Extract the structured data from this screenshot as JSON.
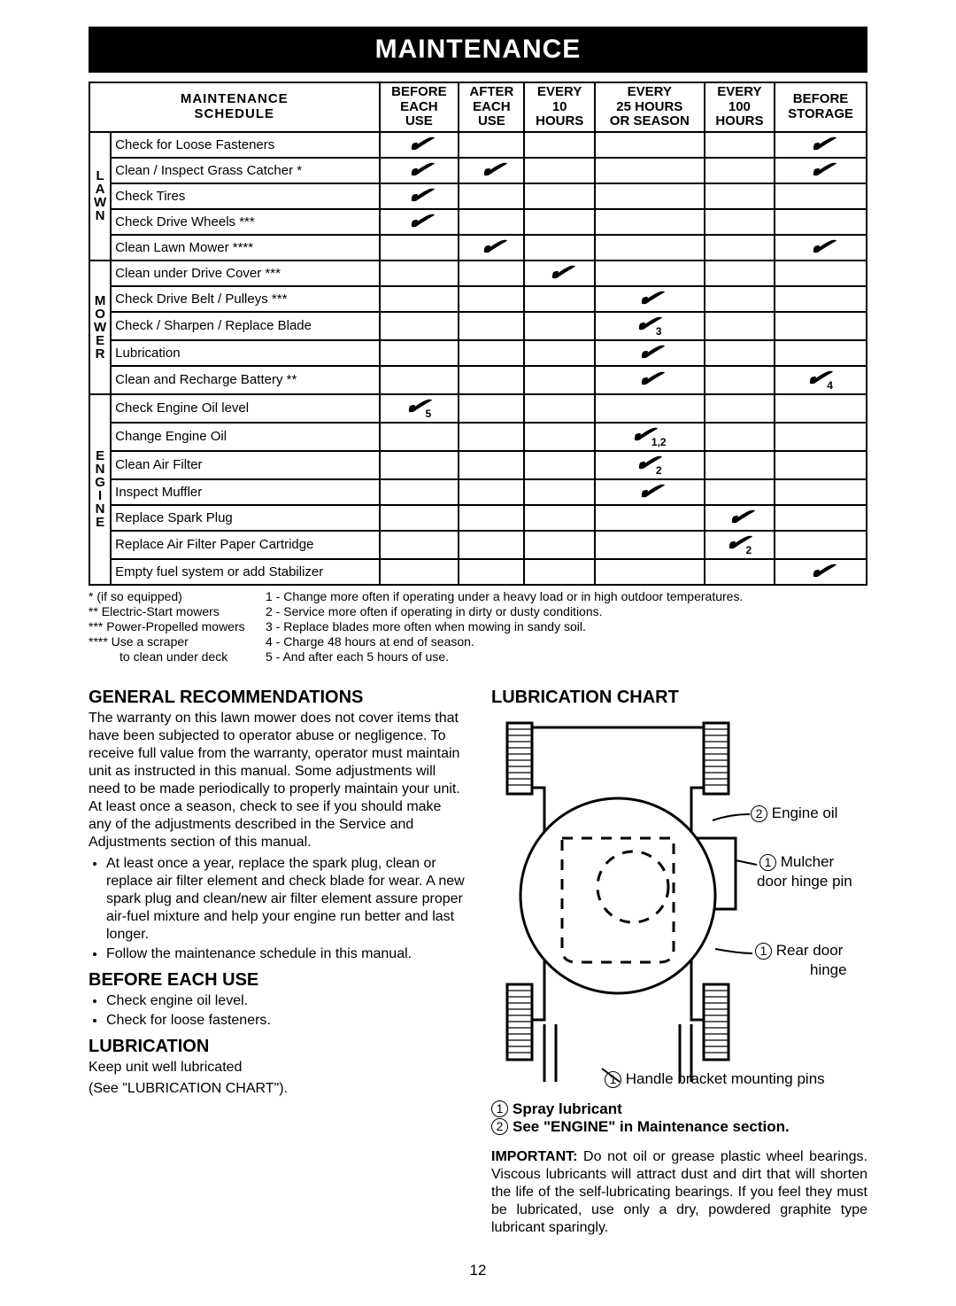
{
  "banner": "MAINTENANCE",
  "schedule_title_l1": "MAINTENANCE",
  "schedule_title_l2": "SCHEDULE",
  "cols": {
    "c1l1": "BEFORE",
    "c1l2": "EACH",
    "c1l3": "USE",
    "c2l1": "AFTER",
    "c2l2": "EACH",
    "c2l3": "USE",
    "c3l1": "EVERY",
    "c3l2": "10",
    "c3l3": "HOURS",
    "c4l1": "EVERY",
    "c4l2": "25 HOURS",
    "c4l3": "OR SEASON",
    "c5l1": "EVERY",
    "c5l2": "100",
    "c5l3": "HOURS",
    "c6l1": "BEFORE",
    "c6l2": "STORAGE"
  },
  "groups": [
    {
      "label": "LAWN",
      "rows": [
        {
          "task": "Check for Loose Fasteners",
          "marks": [
            "1",
            "",
            "",
            "",
            "",
            "1"
          ]
        },
        {
          "task": "Clean / Inspect Grass Catcher *",
          "marks": [
            "1",
            "1",
            "",
            "",
            "",
            "1"
          ]
        },
        {
          "task": "Check Tires",
          "marks": [
            "1",
            "",
            "",
            "",
            "",
            ""
          ]
        },
        {
          "task": "Check Drive Wheels ***",
          "marks": [
            "1",
            "",
            "",
            "",
            "",
            ""
          ]
        },
        {
          "task": "Clean Lawn Mower ****",
          "marks": [
            "",
            "1",
            "",
            "",
            "",
            "1"
          ]
        }
      ]
    },
    {
      "label": "MOWER",
      "rows": [
        {
          "task": "Clean under Drive Cover ***",
          "marks": [
            "",
            "",
            "1",
            "",
            "",
            ""
          ]
        },
        {
          "task": "Check Drive Belt / Pulleys ***",
          "marks": [
            "",
            "",
            "",
            "1",
            "",
            ""
          ]
        },
        {
          "task": "Check / Sharpen / Replace Blade",
          "marks": [
            "",
            "",
            "",
            "1_3",
            "",
            ""
          ]
        },
        {
          "task": "Lubrication",
          "marks": [
            "",
            "",
            "",
            "1",
            "",
            ""
          ]
        },
        {
          "task": "Clean and Recharge Battery **",
          "marks": [
            "",
            "",
            "",
            "1",
            "",
            "1_4"
          ]
        }
      ]
    },
    {
      "label": "ENGINE",
      "rows": [
        {
          "task": "Check Engine Oil level",
          "marks": [
            "1_5",
            "",
            "",
            "",
            "",
            ""
          ]
        },
        {
          "task": "Change Engine Oil",
          "marks": [
            "",
            "",
            "",
            "1_1,2",
            "",
            ""
          ]
        },
        {
          "task": "Clean Air Filter",
          "marks": [
            "",
            "",
            "",
            "1_2",
            "",
            ""
          ]
        },
        {
          "task": "Inspect Muffler",
          "marks": [
            "",
            "",
            "",
            "1",
            "",
            ""
          ]
        },
        {
          "task": "Replace Spark Plug",
          "marks": [
            "",
            "",
            "",
            "",
            "1",
            ""
          ]
        },
        {
          "task": "Replace Air Filter Paper Cartridge",
          "marks": [
            "",
            "",
            "",
            "",
            "1_2",
            ""
          ]
        },
        {
          "task": "Empty fuel system or add Stabilizer",
          "marks": [
            "",
            "",
            "",
            "",
            "",
            "1"
          ]
        }
      ]
    }
  ],
  "notes_left": [
    "* (if so equipped)",
    "** Electric-Start mowers",
    "*** Power-Propelled mowers",
    "**** Use a scraper",
    "         to clean under deck"
  ],
  "notes_right": [
    "1 - Change more often if operating under a heavy load or in high outdoor temperatures.",
    "2 - Service more often if operating in dirty or dusty conditions.",
    "3 - Replace blades more often when mowing in sandy soil.",
    "4 - Charge 48 hours at end of season.",
    "5 - And after each 5 hours of use."
  ],
  "gen_h": "GENERAL RECOMMENDATIONS",
  "gen_p": "The warranty on this lawn mower does not cover items that have been subjected to operator abuse or negligence. To receive full value from the warranty, operator must maintain unit as instructed in this manual. Some adjustments will need to be made periodically to properly maintain your unit. At least once a season, check to see if you should make any of the adjustments described in the Service and Adjustments section of this manual.",
  "gen_b1": "At least once a year, replace the spark plug, clean or replace air filter element and check blade for wear. A new spark plug and clean/new air filter element assure proper air-fuel mixture and help your engine run better and last longer.",
  "gen_b2": "Follow the maintenance schedule in this manual.",
  "beu_h": "BEFORE EACH USE",
  "beu_b1": "Check engine oil level.",
  "beu_b2": "Check for loose fasteners.",
  "lub_h": "LUBRICATION",
  "lub_p1": "Keep unit well lubricated",
  "lub_p2": "(See \"LUBRICATION CHART\").",
  "chart_h": "LUBRICATION CHART",
  "chart_labels": {
    "engine_oil": "Engine oil",
    "mulcher1": "Mulcher",
    "mulcher2": "door hinge pin",
    "rear1": "Rear door",
    "rear2": "hinge",
    "handle": "Handle bracket mounting pins"
  },
  "leg1": "Spray lubricant",
  "leg2": "See \"ENGINE\" in Maintenance section.",
  "important_label": "IMPORTANT:",
  "important_text": "  Do not oil or grease plastic wheel bearings.  Viscous lubricants will attract dust and dirt that will shorten the life of the self-lubricating bearings. If you feel they must be lubricated, use only a dry, powdered graphite type lubricant sparingly.",
  "page": "12"
}
